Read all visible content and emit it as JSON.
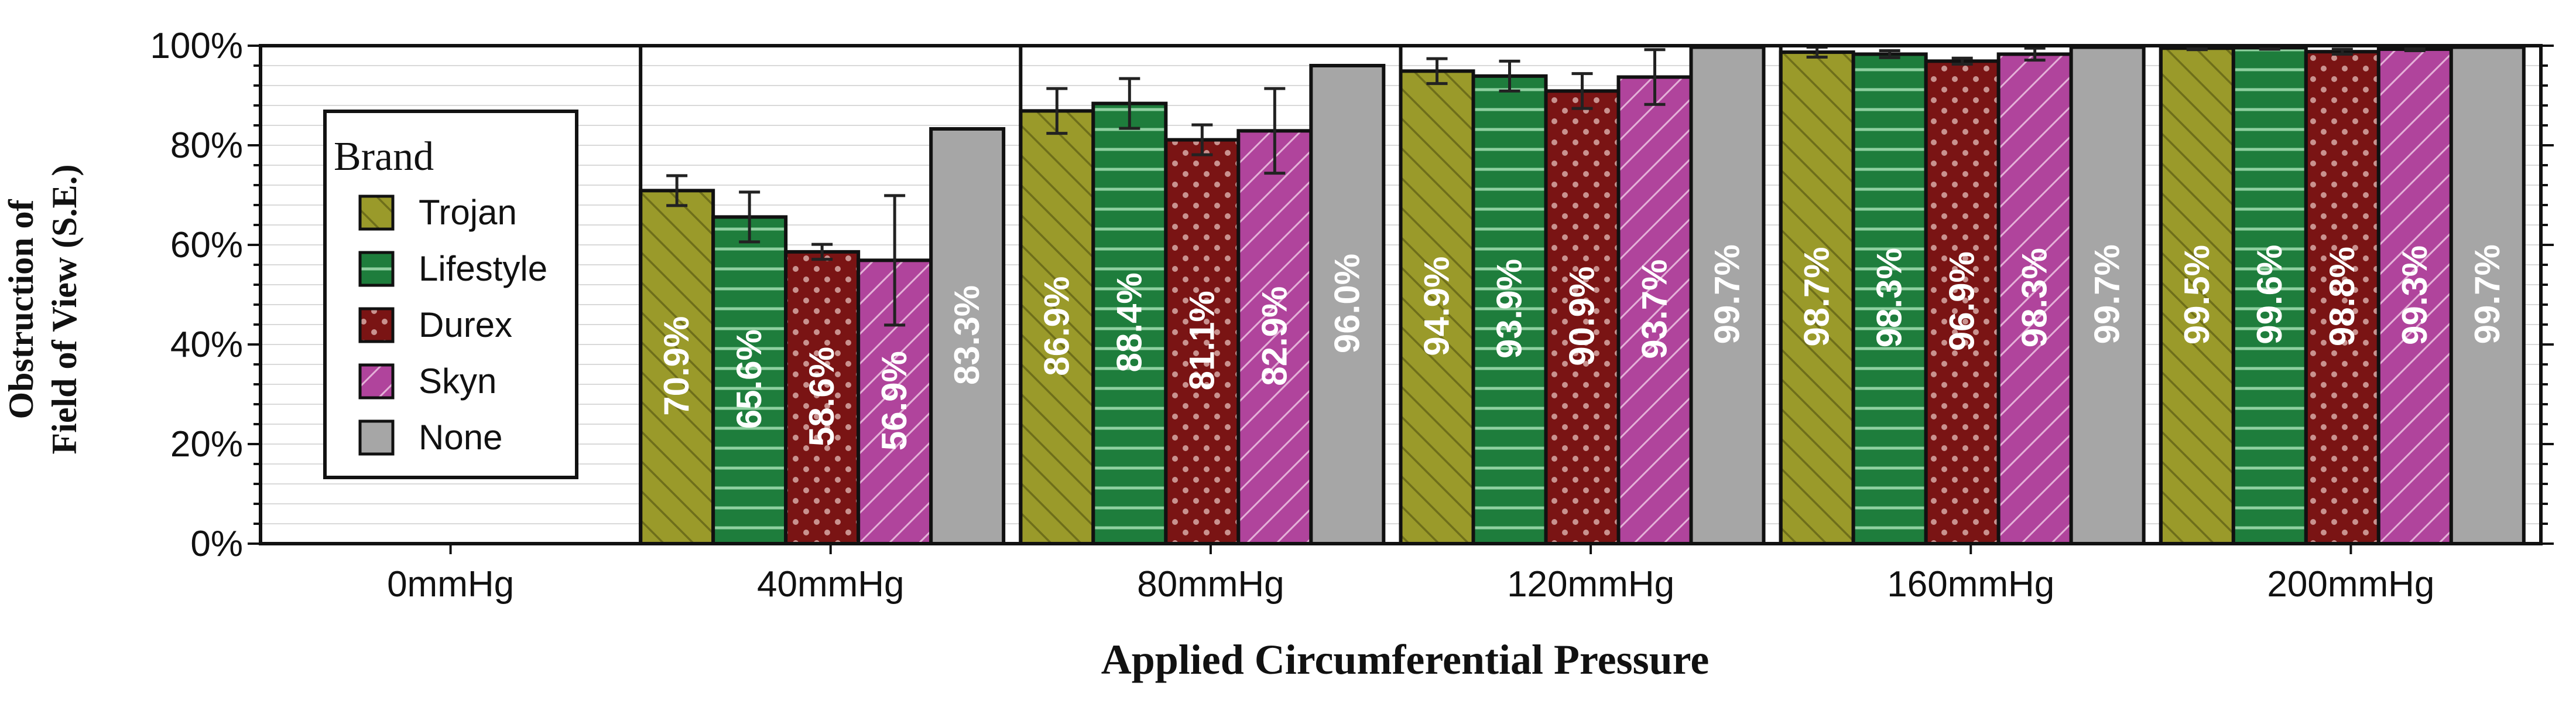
{
  "chart_data": {
    "type": "bar",
    "xlabel": "Applied Circumferential Pressure",
    "ylabel_lines": [
      "Obstruction of",
      "Field of View (S.E.)"
    ],
    "ylim": [
      0,
      100
    ],
    "y_ticks": [
      "0%",
      "20%",
      "40%",
      "60%",
      "80%",
      "100%"
    ],
    "grid": true,
    "legend": {
      "title": "Brand",
      "placement": "left"
    },
    "categories": [
      "0mmHg",
      "40mmHg",
      "80mmHg",
      "120mmHg",
      "160mmHg",
      "200mmHg"
    ],
    "series": [
      {
        "name": "Trojan",
        "color": "#9a9a2a",
        "pattern": "diagonal-lines",
        "values": [
          0,
          70.9,
          86.9,
          94.9,
          98.7,
          99.5
        ],
        "labels": [
          "",
          "70.9%",
          "86.9%",
          "94.9%",
          "98.7%",
          "99.5%"
        ],
        "errors": [
          0,
          3,
          4.5,
          2.5,
          1,
          0.3
        ]
      },
      {
        "name": "Lifestyle",
        "color": "#1e7d3c",
        "pattern": "horizontal-lines",
        "values": [
          0,
          65.6,
          88.4,
          93.9,
          98.3,
          99.6
        ],
        "labels": [
          "",
          "65.6%",
          "88.4%",
          "93.9%",
          "98.3%",
          "99.6%"
        ],
        "errors": [
          0,
          5,
          5,
          3,
          0.7,
          0.3
        ]
      },
      {
        "name": "Durex",
        "color": "#7a1414",
        "pattern": "dots",
        "values": [
          0,
          58.6,
          81.1,
          90.9,
          96.9,
          98.8
        ],
        "labels": [
          "",
          "58.6%",
          "81.1%",
          "90.9%",
          "96.9%",
          "98.8%"
        ],
        "errors": [
          0,
          1.5,
          3,
          3.5,
          0.6,
          0.5
        ]
      },
      {
        "name": "Skyn",
        "color": "#b0449c",
        "pattern": "diagonal-lines-back",
        "values": [
          0,
          56.9,
          82.9,
          93.7,
          98.3,
          99.3
        ],
        "labels": [
          "",
          "56.9%",
          "82.9%",
          "93.7%",
          "98.3%",
          "99.3%"
        ],
        "errors": [
          0,
          13,
          8.5,
          5.5,
          1.2,
          0.3
        ]
      },
      {
        "name": "None",
        "color": "#a6a6a6",
        "pattern": "solid",
        "values": [
          0,
          83.3,
          96.0,
          99.7,
          99.7,
          99.7
        ],
        "labels": [
          "",
          "83.3%",
          "96.0%",
          "99.7%",
          "99.7%",
          "99.7%"
        ],
        "errors": [
          0,
          0,
          0,
          0,
          0,
          0
        ],
        "overflow_line": true
      }
    ]
  }
}
